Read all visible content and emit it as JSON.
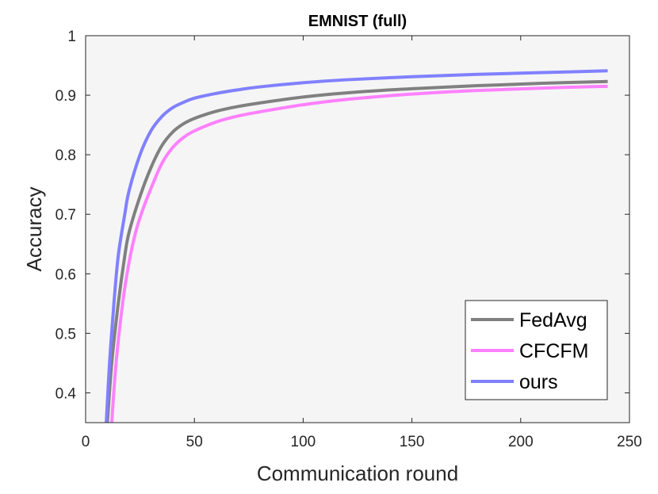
{
  "chart_data": {
    "type": "line",
    "title": "EMNIST (full)",
    "xlabel": "Communication round",
    "ylabel": "Accuracy",
    "xlim": [
      0,
      250
    ],
    "ylim": [
      0.35,
      1.0
    ],
    "xticks": [
      0,
      50,
      100,
      150,
      200,
      250
    ],
    "xtick_labels": [
      "0",
      "50",
      "100",
      "150",
      "200",
      "250"
    ],
    "yticks": [
      0.4,
      0.5,
      0.6,
      0.7,
      0.8,
      0.9,
      1.0
    ],
    "ytick_labels": [
      "0.4",
      "0.5",
      "0.6",
      "0.7",
      "0.8",
      "0.9",
      "1"
    ],
    "grid": false,
    "legend_position": "bottom-right",
    "series": [
      {
        "name": "FedAvg",
        "color": "#808080",
        "x": [
          10,
          12,
          15,
          18,
          20,
          25,
          30,
          35,
          40,
          45,
          50,
          60,
          70,
          80,
          100,
          120,
          150,
          180,
          210,
          240
        ],
        "y": [
          0.35,
          0.45,
          0.55,
          0.63,
          0.67,
          0.73,
          0.778,
          0.815,
          0.838,
          0.852,
          0.861,
          0.873,
          0.881,
          0.887,
          0.897,
          0.904,
          0.911,
          0.916,
          0.92,
          0.923
        ]
      },
      {
        "name": "CFCFM",
        "color": "#FF80FF",
        "x": [
          12,
          14,
          17,
          20,
          23,
          26,
          30,
          35,
          40,
          45,
          50,
          60,
          70,
          80,
          100,
          120,
          150,
          180,
          210,
          240
        ],
        "y": [
          0.35,
          0.45,
          0.55,
          0.62,
          0.67,
          0.705,
          0.743,
          0.785,
          0.812,
          0.829,
          0.84,
          0.855,
          0.865,
          0.872,
          0.884,
          0.893,
          0.902,
          0.908,
          0.912,
          0.915
        ]
      },
      {
        "name": "ours",
        "color": "#8080FF",
        "x": [
          9.5,
          11,
          13,
          15,
          18,
          20,
          25,
          30,
          35,
          40,
          45,
          50,
          60,
          70,
          80,
          100,
          120,
          150,
          180,
          210,
          240
        ],
        "y": [
          0.35,
          0.45,
          0.55,
          0.63,
          0.7,
          0.74,
          0.8,
          0.84,
          0.864,
          0.879,
          0.888,
          0.895,
          0.903,
          0.909,
          0.914,
          0.921,
          0.926,
          0.931,
          0.935,
          0.938,
          0.941
        ]
      }
    ]
  }
}
